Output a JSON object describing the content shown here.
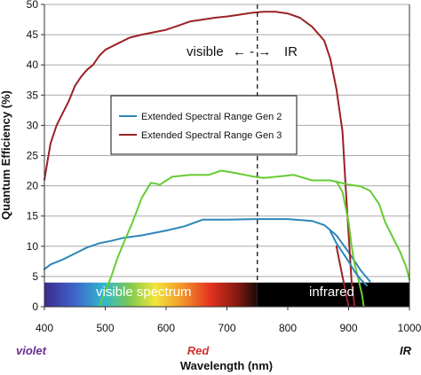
{
  "chart_data": {
    "type": "line",
    "xlabel": "Wavelength (nm)",
    "ylabel": "Quantum Efficiency (%)",
    "xlim": [
      400,
      1000
    ],
    "ylim": [
      0,
      50
    ],
    "x_ticks": [
      400,
      500,
      600,
      700,
      800,
      900,
      1000
    ],
    "y_ticks": [
      0,
      5,
      10,
      15,
      20,
      25,
      30,
      35,
      40,
      45,
      50
    ],
    "grid": "horizontal",
    "legend_placement": "center-left",
    "series": [
      {
        "name": "Extended Spectral Range Gen 2",
        "color": "#2e86b9",
        "points": [
          [
            400,
            6.2
          ],
          [
            410,
            7
          ],
          [
            430,
            7.8
          ],
          [
            450,
            8.8
          ],
          [
            470,
            9.8
          ],
          [
            490,
            10.5
          ],
          [
            510,
            10.9
          ],
          [
            530,
            11.4
          ],
          [
            560,
            11.8
          ],
          [
            600,
            12.6
          ],
          [
            630,
            13.3
          ],
          [
            660,
            14.4
          ],
          [
            700,
            14.4
          ],
          [
            750,
            14.5
          ],
          [
            800,
            14.5
          ],
          [
            840,
            14.2
          ],
          [
            860,
            13.5
          ],
          [
            880,
            11.8
          ],
          [
            900,
            9
          ],
          [
            920,
            6
          ],
          [
            935,
            4.2
          ]
        ]
      },
      {
        "name": "Extended Spectral Range Gen 3",
        "color": "#9b2226",
        "points": [
          [
            400,
            21
          ],
          [
            405,
            24
          ],
          [
            410,
            27
          ],
          [
            420,
            30
          ],
          [
            430,
            32
          ],
          [
            440,
            34
          ],
          [
            450,
            36.5
          ],
          [
            460,
            38
          ],
          [
            470,
            39.2
          ],
          [
            480,
            40
          ],
          [
            490,
            41.5
          ],
          [
            500,
            42.5
          ],
          [
            520,
            43.5
          ],
          [
            540,
            44.5
          ],
          [
            560,
            45
          ],
          [
            580,
            45.4
          ],
          [
            600,
            45.8
          ],
          [
            620,
            46.5
          ],
          [
            640,
            47.2
          ],
          [
            660,
            47.5
          ],
          [
            680,
            47.8
          ],
          [
            700,
            48
          ],
          [
            720,
            48.3
          ],
          [
            740,
            48.6
          ],
          [
            760,
            48.8
          ],
          [
            780,
            48.8
          ],
          [
            800,
            48.5
          ],
          [
            820,
            47.8
          ],
          [
            840,
            46.3
          ],
          [
            860,
            44
          ],
          [
            870,
            41
          ],
          [
            880,
            36
          ],
          [
            890,
            29
          ],
          [
            895,
            20
          ],
          [
            900,
            12
          ],
          [
            905,
            4
          ],
          [
            910,
            0
          ]
        ]
      },
      {
        "name": "",
        "color": "#66cc33",
        "points": [
          [
            490,
            0
          ],
          [
            500,
            2.5
          ],
          [
            510,
            5
          ],
          [
            520,
            8
          ],
          [
            530,
            10.5
          ],
          [
            545,
            14
          ],
          [
            560,
            18
          ],
          [
            575,
            20.5
          ],
          [
            590,
            20.2
          ],
          [
            610,
            21.5
          ],
          [
            640,
            21.8
          ],
          [
            670,
            21.8
          ],
          [
            690,
            22.5
          ],
          [
            710,
            22.2
          ],
          [
            740,
            21.6
          ],
          [
            760,
            21.3
          ],
          [
            790,
            21.6
          ],
          [
            810,
            21.8
          ],
          [
            840,
            20.9
          ],
          [
            870,
            20.9
          ],
          [
            900,
            20.2
          ],
          [
            920,
            19.9
          ],
          [
            935,
            19.2
          ],
          [
            950,
            17
          ],
          [
            960,
            14
          ],
          [
            975,
            11
          ],
          [
            985,
            9
          ],
          [
            995,
            6.5
          ],
          [
            1000,
            4.5
          ]
        ]
      }
    ],
    "extra_series": [
      {
        "color": "#9b2226",
        "points": [
          [
            880,
            10
          ],
          [
            885,
            7.5
          ],
          [
            890,
            5
          ],
          [
            895,
            2.5
          ],
          [
            900,
            0
          ]
        ]
      },
      {
        "color": "#66cc33",
        "points": [
          [
            880,
            20.7
          ],
          [
            890,
            19
          ],
          [
            900,
            14
          ],
          [
            905,
            10
          ],
          [
            910,
            7
          ],
          [
            915,
            5
          ],
          [
            922,
            2
          ],
          [
            925,
            0
          ]
        ]
      },
      {
        "color": "#2e86b9",
        "points": [
          [
            870,
            12.5
          ],
          [
            880,
            10.5
          ],
          [
            890,
            9
          ],
          [
            900,
            7.5
          ],
          [
            910,
            5.8
          ],
          [
            920,
            4.5
          ],
          [
            930,
            3.5
          ]
        ]
      }
    ],
    "divider_x": 750,
    "band": {
      "y_range": [
        0,
        4
      ],
      "split_x": 750,
      "left_label": "visible spectrum",
      "right_label": "infrared"
    },
    "annotation": {
      "left_text": "visible",
      "right_text": "IR",
      "arrows": "← - →"
    },
    "range_labels": [
      {
        "text": "violet",
        "color": "#6b2c91"
      },
      {
        "text": "Red",
        "color": "#d0312d"
      },
      {
        "text": "IR",
        "color": "#111111"
      }
    ]
  }
}
